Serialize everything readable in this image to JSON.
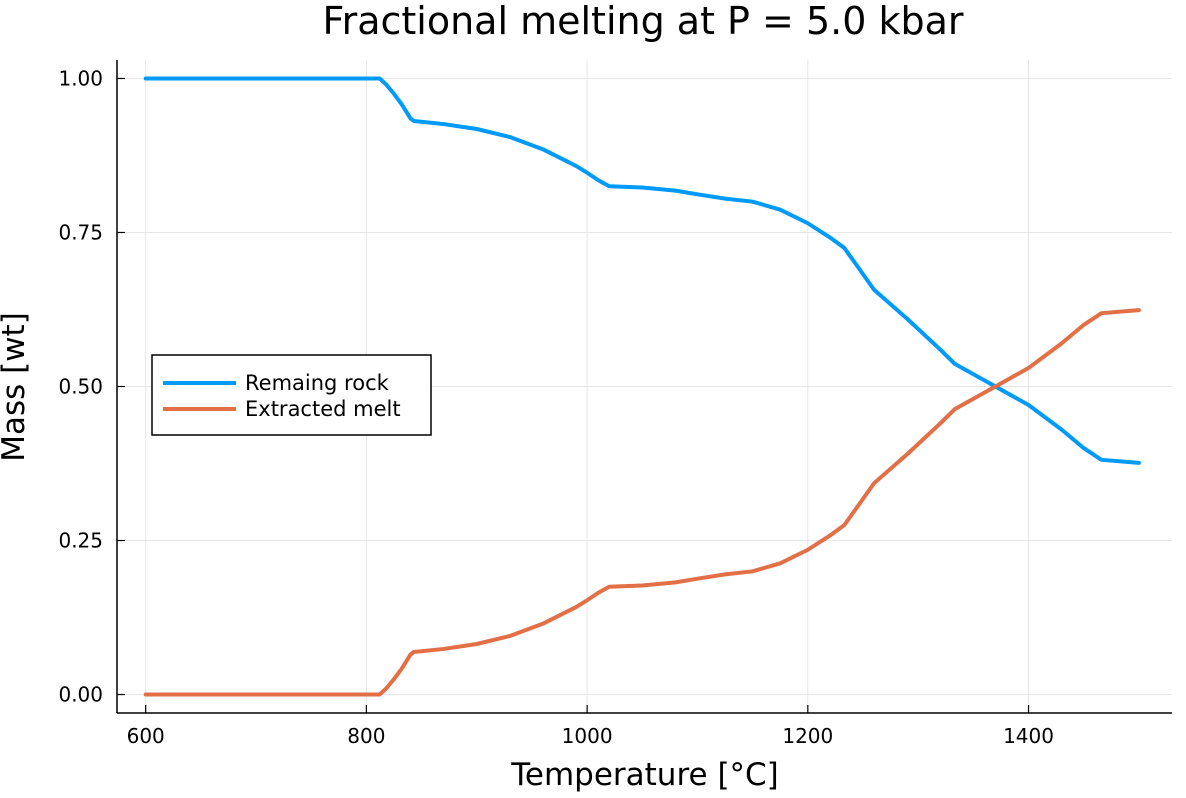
{
  "chart_data": {
    "type": "line",
    "title": "Fractional melting at P = 5.0 kbar",
    "xlabel": "Temperature [°C]",
    "ylabel": "Mass [wt]",
    "xlim": [
      574,
      1530
    ],
    "ylim": [
      -0.03,
      1.03
    ],
    "xticks": [
      600,
      800,
      1000,
      1200,
      1400
    ],
    "xtick_labels": [
      "600",
      "800",
      "1000",
      "1200",
      "1400"
    ],
    "yticks": [
      0,
      0.25,
      0.5,
      0.75,
      1.0
    ],
    "ytick_labels": [
      "0.00",
      "0.25",
      "0.50",
      "0.75",
      "1.00"
    ],
    "grid": true,
    "legend_position": "left-center",
    "series": [
      {
        "name": "Remaing rock",
        "color": "#009AFA",
        "x": [
          600,
          700,
          800,
          812,
          818,
          825,
          832,
          840,
          843,
          870,
          900,
          930,
          960,
          990,
          1000,
          1010,
          1020,
          1050,
          1080,
          1100,
          1125,
          1150,
          1175,
          1200,
          1220,
          1233,
          1245,
          1260,
          1290,
          1320,
          1333,
          1360,
          1400,
          1430,
          1450,
          1466,
          1500
        ],
        "values": [
          1.0,
          1.0,
          1.0,
          1.0,
          0.99,
          0.975,
          0.958,
          0.935,
          0.931,
          0.926,
          0.918,
          0.905,
          0.885,
          0.858,
          0.847,
          0.835,
          0.825,
          0.823,
          0.818,
          0.812,
          0.805,
          0.8,
          0.787,
          0.765,
          0.742,
          0.725,
          0.695,
          0.657,
          0.61,
          0.56,
          0.537,
          0.51,
          0.47,
          0.43,
          0.4,
          0.381,
          0.376
        ]
      },
      {
        "name": "Extracted melt",
        "color": "#E26F46",
        "x": [
          600,
          700,
          800,
          812,
          818,
          825,
          832,
          840,
          843,
          870,
          900,
          930,
          960,
          990,
          1000,
          1010,
          1020,
          1050,
          1080,
          1100,
          1125,
          1150,
          1175,
          1200,
          1220,
          1233,
          1245,
          1260,
          1290,
          1320,
          1333,
          1360,
          1400,
          1430,
          1450,
          1466,
          1500
        ],
        "values": [
          0.0,
          0.0,
          0.0,
          0.0,
          0.01,
          0.025,
          0.042,
          0.065,
          0.069,
          0.074,
          0.082,
          0.095,
          0.115,
          0.142,
          0.153,
          0.165,
          0.175,
          0.177,
          0.182,
          0.188,
          0.195,
          0.2,
          0.213,
          0.235,
          0.258,
          0.275,
          0.305,
          0.343,
          0.39,
          0.44,
          0.463,
          0.49,
          0.53,
          0.57,
          0.6,
          0.619,
          0.624
        ]
      }
    ]
  }
}
